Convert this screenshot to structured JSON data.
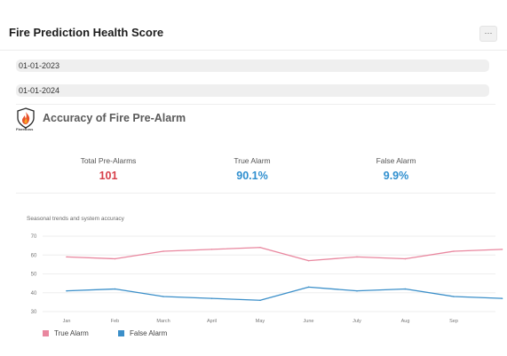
{
  "header": {
    "title": "Fire Prediction Health Score",
    "more_label": "···"
  },
  "filters": {
    "start_date": "01-01-2023",
    "end_date": "01-01-2024"
  },
  "card": {
    "title": "Accuracy of Fire Pre-Alarm",
    "logo_text": "FlareBoss",
    "kpis": [
      {
        "label": "Total Pre-Alarms",
        "value": "101",
        "color": "#d7404a"
      },
      {
        "label": "True Alarm",
        "value": "90.1%",
        "color": "#2f8fcf"
      },
      {
        "label": "False Alarm",
        "value": "9.9%",
        "color": "#2f8fcf"
      }
    ]
  },
  "chart_data": {
    "type": "line",
    "title": "Seasonal trends and system accuracy",
    "categories": [
      "Jan",
      "Feb",
      "March",
      "April",
      "May",
      "June",
      "July",
      "Aug",
      "Sep",
      ""
    ],
    "ylim": [
      30,
      70
    ],
    "yticks": [
      70,
      60,
      50,
      40,
      30
    ],
    "grid": true,
    "legend": "bottom-left",
    "series": [
      {
        "name": "True Alarm",
        "color": "#e9879f",
        "values": [
          59,
          58,
          62,
          63,
          64,
          57,
          59,
          58,
          62,
          63
        ]
      },
      {
        "name": "False Alarm",
        "color": "#3b8fc9",
        "values": [
          41,
          42,
          38,
          37,
          36,
          43,
          41,
          42,
          38,
          37
        ]
      }
    ]
  }
}
